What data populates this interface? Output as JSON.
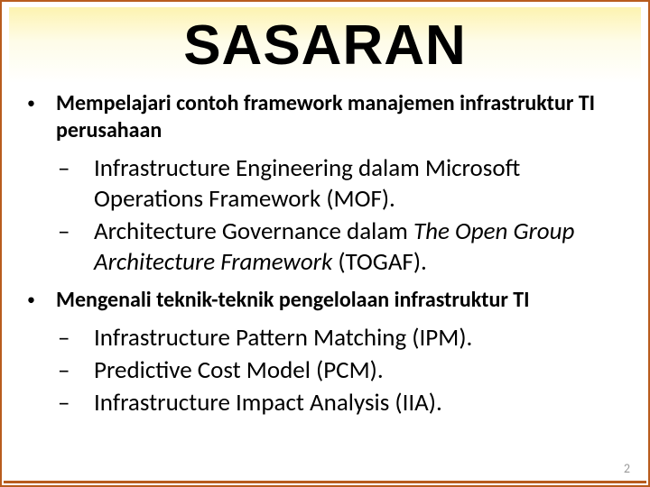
{
  "colors": {
    "border": "#b85c1e",
    "title_gradient_top": "#fdf3b0",
    "title_gradient_mid": "#fefce8",
    "title_gradient_bottom": "#ffffff",
    "text": "#000000",
    "page_num": "#9a9a9a",
    "background": "#ffffff"
  },
  "typography": {
    "title_font": "Arial Black",
    "title_size_pt": 46,
    "title_weight": 900,
    "body_font": "Calibri",
    "bullet_size_pt": 18,
    "bullet_weight": 700,
    "sub_size_pt": 20,
    "sub_weight": 400
  },
  "title": "SASARAN",
  "bullets": [
    {
      "text": "Mempelajari contoh framework manajemen infrastruktur TI perusahaan",
      "subs": [
        {
          "plain": "Infrastructure Engineering dalam Microsoft Operations Framework (MOF)."
        },
        {
          "plain_prefix": "Architecture Governance dalam ",
          "italic": "The Open Group Architecture Framework",
          "plain_suffix": " (TOGAF)."
        }
      ]
    },
    {
      "text": "Mengenali teknik-teknik pengelolaan infrastruktur TI",
      "subs": [
        {
          "plain": "Infrastructure Pattern Matching (IPM)."
        },
        {
          "plain": "Predictive Cost Model (PCM)."
        },
        {
          "plain": "Infrastructure Impact Analysis (IIA)."
        }
      ]
    }
  ],
  "page_number": "2"
}
